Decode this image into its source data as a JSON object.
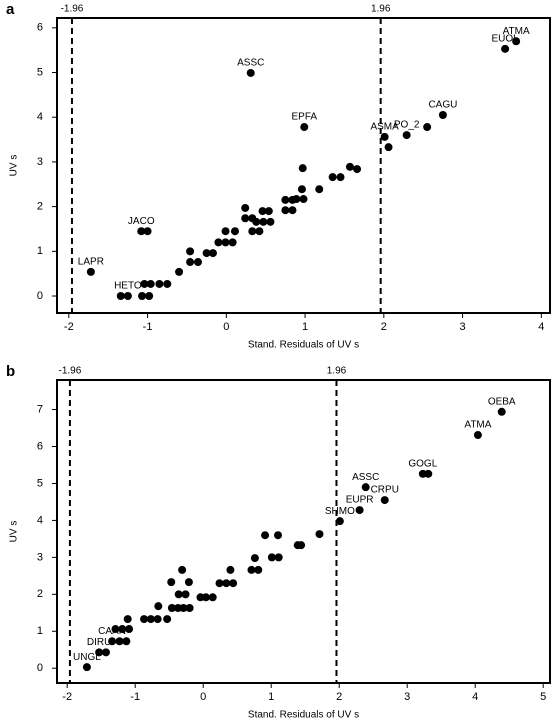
{
  "chart_data": [
    {
      "type": "scatter",
      "panel": "a",
      "xlabel": "Stand. Residuals of UV s",
      "ylabel": "UV s",
      "xlim": [
        -2.15,
        4.11
      ],
      "ylim": [
        -0.38,
        6.22
      ],
      "xticks": [
        -2,
        -1,
        0,
        1,
        2,
        3,
        4
      ],
      "yticks": [
        0,
        1,
        2,
        3,
        4,
        5,
        6
      ],
      "vlines": [
        -1.96,
        1.96
      ],
      "color": "#000000",
      "x": [
        3.68,
        3.54,
        0.31,
        0.99,
        2.75,
        2.01,
        2.29,
        2.06,
        2.55,
        -1.72,
        -1.08,
        -1.0,
        -1.34,
        -1.25,
        -1.07,
        -0.98,
        -1.04,
        -0.96,
        -0.85,
        -0.75,
        -0.6,
        -0.46,
        -0.36,
        -0.46,
        -0.25,
        -0.17,
        -0.1,
        -0.01,
        0.08,
        -0.01,
        0.11,
        0.24,
        0.33,
        0.24,
        0.33,
        0.42,
        0.38,
        0.47,
        0.56,
        0.46,
        0.54,
        0.75,
        0.84,
        0.75,
        0.84,
        0.89,
        0.98,
        0.96,
        0.97,
        1.18,
        1.35,
        1.45,
        1.57,
        1.66
      ],
      "values": [
        5.7,
        5.53,
        4.99,
        3.78,
        4.05,
        3.56,
        3.6,
        3.33,
        3.78,
        0.54,
        1.45,
        1.45,
        0,
        0,
        0,
        0,
        0.27,
        0.27,
        0.27,
        0.27,
        0.54,
        0.76,
        0.76,
        1.0,
        0.96,
        0.96,
        1.2,
        1.2,
        1.2,
        1.45,
        1.45,
        1.74,
        1.74,
        1.97,
        1.45,
        1.45,
        1.66,
        1.66,
        1.66,
        1.9,
        1.9,
        1.92,
        1.92,
        2.15,
        2.15,
        2.17,
        2.17,
        2.39,
        2.86,
        2.39,
        2.66,
        2.66,
        2.89,
        2.84
      ],
      "point_labels": [
        "ATMA",
        "EUOL",
        "ASSC",
        "EPFA",
        "CAGU",
        "ASMA",
        "PO_2",
        null,
        null,
        "LAPR",
        "JACO",
        null,
        null,
        "HETO",
        null,
        null,
        null,
        null,
        null,
        null,
        null,
        null,
        null,
        null,
        null,
        null,
        null,
        null,
        null,
        null,
        null,
        null,
        null,
        null,
        null,
        null,
        null,
        null,
        null,
        null,
        null,
        null,
        null,
        null,
        null,
        null,
        null,
        null,
        null,
        null,
        null,
        null,
        null,
        null
      ]
    },
    {
      "type": "scatter",
      "panel": "b",
      "xlabel": "Stand. Residuals of UV s",
      "ylabel": "UV s",
      "xlim": [
        -2.15,
        5.1
      ],
      "ylim": [
        -0.4,
        7.8
      ],
      "xticks": [
        -2,
        -1,
        0,
        1,
        2,
        3,
        4,
        5
      ],
      "yticks": [
        0,
        1,
        2,
        3,
        4,
        5,
        6,
        7
      ],
      "vlines": [
        -1.96,
        1.96
      ],
      "color": "#000000",
      "x": [
        4.39,
        4.04,
        3.23,
        3.31,
        2.39,
        2.67,
        2.3,
        2.01,
        -1.71,
        -1.53,
        -1.43,
        -1.34,
        -1.23,
        -1.13,
        -1.29,
        -1.19,
        -1.09,
        -1.11,
        -0.87,
        -0.77,
        -0.67,
        -0.53,
        -0.66,
        -0.46,
        -0.37,
        -0.29,
        -0.2,
        -0.47,
        -0.31,
        -0.36,
        -0.26,
        -0.21,
        -0.04,
        0.04,
        0.14,
        0.24,
        0.34,
        0.44,
        0.4,
        0.71,
        0.81,
        0.76,
        0.91,
        1.1,
        1.01,
        1.11,
        1.39,
        1.44,
        1.71
      ],
      "values": [
        6.94,
        6.31,
        5.26,
        5.26,
        4.9,
        4.55,
        4.28,
        3.98,
        0.03,
        0.43,
        0.43,
        0.73,
        0.73,
        0.73,
        1.06,
        1.06,
        1.06,
        1.33,
        1.33,
        1.33,
        1.33,
        1.33,
        1.68,
        1.63,
        1.63,
        1.63,
        1.63,
        2.33,
        2.66,
        2.0,
        2.0,
        2.33,
        1.92,
        1.92,
        1.92,
        2.3,
        2.3,
        2.3,
        2.66,
        2.66,
        2.66,
        2.98,
        3.6,
        3.6,
        3.0,
        3.0,
        3.33,
        3.33,
        3.63
      ],
      "point_labels": [
        "OEBA",
        "ATMA",
        "GOGL",
        null,
        "ASSC",
        "CRPU",
        "EUPR",
        "SHMO",
        "UNGL",
        "DIRU",
        null,
        "CAAN",
        null,
        null,
        null,
        null,
        null,
        null,
        null,
        null,
        null,
        null,
        null,
        null,
        null,
        null,
        null,
        null,
        null,
        null,
        null,
        null,
        null,
        null,
        null,
        null,
        null,
        null,
        null,
        null,
        null,
        null,
        null,
        null,
        null,
        null,
        null,
        null,
        null
      ]
    }
  ]
}
